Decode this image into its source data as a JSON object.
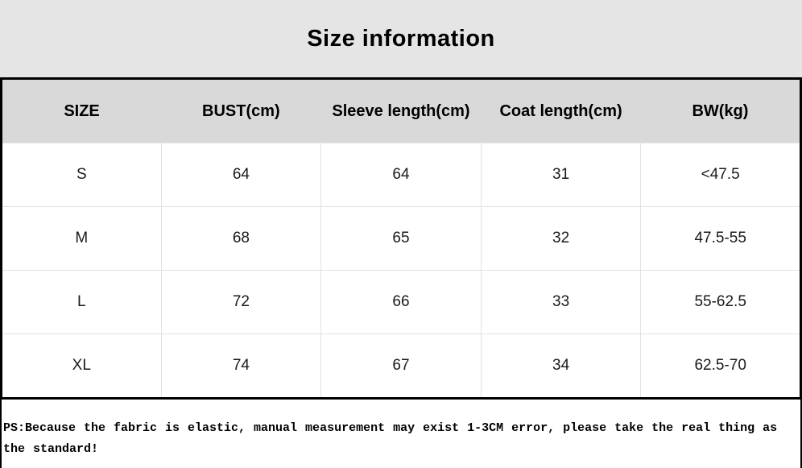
{
  "title": "Size information",
  "colors": {
    "title_band_bg": "#e5e5e5",
    "header_row_bg": "#d9d9d9",
    "table_border": "#000000",
    "grid_line": "#e2e2e2",
    "text": "#000000"
  },
  "table": {
    "headers": [
      "SIZE",
      "BUST(cm)",
      "Sleeve length(cm)",
      "Coat length(cm)",
      "BW(kg)"
    ],
    "rows": [
      {
        "size": "S",
        "bust": "64",
        "sleeve": "64",
        "coat": "31",
        "bw": "<47.5"
      },
      {
        "size": "M",
        "bust": "68",
        "sleeve": "65",
        "coat": "32",
        "bw": "47.5-55"
      },
      {
        "size": "L",
        "bust": "72",
        "sleeve": "66",
        "coat": "33",
        "bw": "55-62.5"
      },
      {
        "size": "XL",
        "bust": "74",
        "sleeve": "67",
        "coat": "34",
        "bw": "62.5-70"
      }
    ]
  },
  "note": "PS:Because the fabric is elastic, manual measurement may exist 1-3CM error, please take the real thing as the standard!"
}
